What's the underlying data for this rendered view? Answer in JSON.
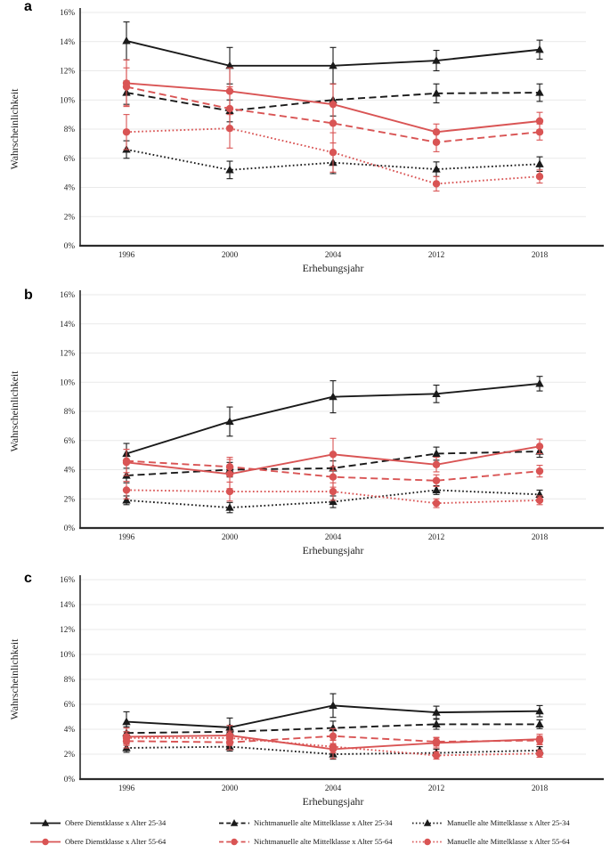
{
  "figure": {
    "background": "#ffffff",
    "colors": {
      "black": "#1a1a1a",
      "red": "#d95454",
      "grid": "#e9e9e9",
      "axis": "#2b2b2b"
    }
  },
  "legend": {
    "items": [
      {
        "label": "Obere Dienstklasse x Alter 25-34",
        "color": "black",
        "dash": "solid",
        "marker": "triangle",
        "row": 0,
        "col": 0
      },
      {
        "label": "Nichtmanuelle alte Mittelklasse x Alter 25-34",
        "color": "black",
        "dash": "dashed",
        "marker": "triangle",
        "row": 0,
        "col": 1
      },
      {
        "label": "Manuelle alte Mittelklasse x Alter 25-34",
        "color": "black",
        "dash": "dotted",
        "marker": "triangle",
        "row": 0,
        "col": 2
      },
      {
        "label": "Obere Dienstklasse x Alter 55-64",
        "color": "red",
        "dash": "solid",
        "marker": "circle",
        "row": 1,
        "col": 0
      },
      {
        "label": "Nichtmanuelle alte Mittelklasse x Alter 55-64",
        "color": "red",
        "dash": "dashed",
        "marker": "circle",
        "row": 1,
        "col": 1
      },
      {
        "label": "Manuelle alte Mittelklasse x Alter 55-64",
        "color": "red",
        "dash": "dotted",
        "marker": "circle",
        "row": 1,
        "col": 2
      }
    ]
  },
  "chart_data": [
    {
      "panel": "a",
      "type": "line",
      "xlabel": "Erhebungsjahr",
      "ylabel": "Wahrscheinlichkeit",
      "ylim": [
        0,
        16
      ],
      "yticks": [
        "0%",
        "2%",
        "4%",
        "6%",
        "8%",
        "10%",
        "12%",
        "14%",
        "16%"
      ],
      "x": [
        1996,
        2000,
        2004,
        2012,
        2018
      ],
      "xticks": [
        "1996",
        "2000",
        "2004",
        "2012",
        "2018"
      ],
      "grid": true,
      "series": [
        {
          "name": "Obere Dienstklasse x Alter 25-34",
          "color": "black",
          "dash": "solid",
          "marker": "triangle",
          "values": [
            14.05,
            12.35,
            12.35,
            12.7,
            13.45
          ],
          "errors": [
            1.3,
            1.25,
            1.25,
            0.7,
            0.65
          ]
        },
        {
          "name": "Nichtmanuelle alte Mittelklasse x Alter 25-34",
          "color": "black",
          "dash": "dashed",
          "marker": "triangle",
          "values": [
            10.5,
            9.25,
            10.0,
            10.45,
            10.5
          ],
          "errors": [
            0.8,
            0.75,
            1.1,
            0.65,
            0.6
          ]
        },
        {
          "name": "Manuelle alte Mittelklasse x Alter 25-34",
          "color": "black",
          "dash": "dotted",
          "marker": "triangle",
          "values": [
            6.6,
            5.2,
            5.7,
            5.25,
            5.6
          ],
          "errors": [
            0.6,
            0.6,
            0.75,
            0.5,
            0.5
          ]
        },
        {
          "name": "Obere Dienstklasse x Alter 55-64",
          "color": "red",
          "dash": "solid",
          "marker": "circle",
          "values": [
            11.15,
            10.6,
            9.7,
            7.8,
            8.55
          ],
          "errors": [
            1.6,
            1.6,
            1.4,
            0.55,
            0.6
          ]
        },
        {
          "name": "Nichtmanuelle alte Mittelklasse x Alter 55-64",
          "color": "red",
          "dash": "dashed",
          "marker": "circle",
          "values": [
            10.9,
            9.4,
            8.4,
            7.1,
            7.8
          ],
          "errors": [
            1.3,
            1.5,
            1.35,
            0.65,
            0.55
          ]
        },
        {
          "name": "Manuelle alte Mittelklasse x Alter 55-64",
          "color": "red",
          "dash": "dotted",
          "marker": "circle",
          "values": [
            7.8,
            8.05,
            6.4,
            4.25,
            4.75
          ],
          "errors": [
            1.2,
            1.35,
            1.35,
            0.5,
            0.45
          ]
        }
      ]
    },
    {
      "panel": "b",
      "type": "line",
      "xlabel": "Erhebungsjahr",
      "ylabel": "Wahrscheinlichkeit",
      "ylim": [
        0,
        16
      ],
      "yticks": [
        "0%",
        "2%",
        "4%",
        "6%",
        "8%",
        "10%",
        "12%",
        "14%",
        "16%"
      ],
      "x": [
        1996,
        2000,
        2004,
        2012,
        2018
      ],
      "xticks": [
        "1996",
        "2000",
        "2004",
        "2012",
        "2018"
      ],
      "grid": true,
      "series": [
        {
          "name": "Obere Dienstklasse x Alter 25-34",
          "color": "black",
          "dash": "solid",
          "marker": "triangle",
          "values": [
            5.1,
            7.3,
            9.0,
            9.2,
            9.9
          ],
          "errors": [
            0.7,
            1.0,
            1.1,
            0.6,
            0.5
          ]
        },
        {
          "name": "Nichtmanuelle alte Mittelklasse x Alter 25-34",
          "color": "black",
          "dash": "dashed",
          "marker": "triangle",
          "values": [
            3.6,
            4.0,
            4.1,
            5.1,
            5.25
          ],
          "errors": [
            0.5,
            0.5,
            0.5,
            0.45,
            0.4
          ]
        },
        {
          "name": "Manuelle alte Mittelklasse x Alter 25-34",
          "color": "black",
          "dash": "dotted",
          "marker": "triangle",
          "values": [
            1.9,
            1.4,
            1.8,
            2.6,
            2.3
          ],
          "errors": [
            0.3,
            0.35,
            0.4,
            0.3,
            0.3
          ]
        },
        {
          "name": "Obere Dienstklasse x Alter 55-64",
          "color": "red",
          "dash": "solid",
          "marker": "circle",
          "values": [
            4.5,
            3.7,
            5.05,
            4.35,
            5.6
          ],
          "errors": [
            0.9,
            1.0,
            1.1,
            0.5,
            0.5
          ]
        },
        {
          "name": "Nichtmanuelle alte Mittelklasse x Alter 55-64",
          "color": "red",
          "dash": "dashed",
          "marker": "circle",
          "values": [
            4.6,
            4.2,
            3.5,
            3.25,
            3.9
          ],
          "errors": [
            0.8,
            0.65,
            0.7,
            0.4,
            0.4
          ]
        },
        {
          "name": "Manuelle alte Mittelklasse x Alter 55-64",
          "color": "red",
          "dash": "dotted",
          "marker": "circle",
          "values": [
            2.6,
            2.5,
            2.5,
            1.7,
            1.9
          ],
          "errors": [
            0.6,
            0.65,
            0.6,
            0.3,
            0.3
          ]
        }
      ]
    },
    {
      "panel": "c",
      "type": "line",
      "xlabel": "Erhebungsjahr",
      "ylabel": "Wahrscheinlichkeit",
      "ylim": [
        0,
        16
      ],
      "yticks": [
        "0%",
        "2%",
        "4%",
        "6%",
        "8%",
        "10%",
        "12%",
        "14%",
        "16%"
      ],
      "x": [
        1996,
        2000,
        2004,
        2012,
        2018
      ],
      "xticks": [
        "1996",
        "2000",
        "2004",
        "2012",
        "2018"
      ],
      "grid": true,
      "series": [
        {
          "name": "Obere Dienstklasse x Alter 25-34",
          "color": "black",
          "dash": "solid",
          "marker": "triangle",
          "values": [
            4.6,
            4.15,
            5.9,
            5.35,
            5.45
          ],
          "errors": [
            0.8,
            0.75,
            0.95,
            0.5,
            0.45
          ]
        },
        {
          "name": "Nichtmanuelle alte Mittelklasse x Alter 25-34",
          "color": "black",
          "dash": "dashed",
          "marker": "triangle",
          "values": [
            3.7,
            3.8,
            4.1,
            4.4,
            4.4
          ],
          "errors": [
            0.5,
            0.5,
            0.55,
            0.4,
            0.35
          ]
        },
        {
          "name": "Manuelle alte Mittelklasse x Alter 25-34",
          "color": "black",
          "dash": "dotted",
          "marker": "triangle",
          "values": [
            2.5,
            2.6,
            2.0,
            2.1,
            2.3
          ],
          "errors": [
            0.35,
            0.35,
            0.4,
            0.3,
            0.3
          ]
        },
        {
          "name": "Obere Dienstklasse x Alter 55-64",
          "color": "red",
          "dash": "solid",
          "marker": "circle",
          "values": [
            3.4,
            3.5,
            2.4,
            2.9,
            3.2
          ],
          "errors": [
            0.7,
            0.8,
            0.75,
            0.4,
            0.4
          ]
        },
        {
          "name": "Nichtmanuelle alte Mittelklasse x Alter 55-64",
          "color": "red",
          "dash": "dashed",
          "marker": "circle",
          "values": [
            3.05,
            2.95,
            3.45,
            3.0,
            3.1
          ],
          "errors": [
            0.55,
            0.6,
            0.6,
            0.35,
            0.35
          ]
        },
        {
          "name": "Manuelle alte Mittelklasse x Alter 55-64",
          "color": "red",
          "dash": "dotted",
          "marker": "circle",
          "values": [
            3.3,
            3.3,
            2.6,
            1.9,
            2.05
          ],
          "errors": [
            0.5,
            0.55,
            0.5,
            0.3,
            0.3
          ]
        }
      ]
    }
  ]
}
